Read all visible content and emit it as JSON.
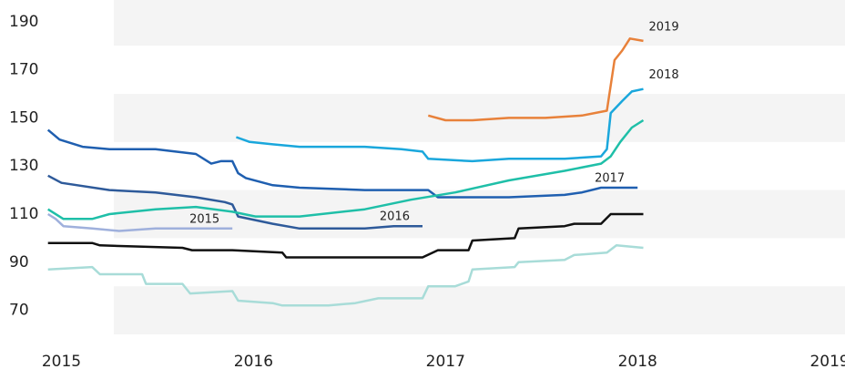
{
  "chart_data": {
    "type": "line",
    "xlim": [
      2014.68,
      2019.08
    ],
    "xticks": [
      2015,
      2016,
      2017,
      2018,
      2019
    ],
    "ylim": [
      60,
      200
    ],
    "yticks": [
      70,
      90,
      110,
      130,
      150,
      170,
      190
    ],
    "bands": true,
    "series": [
      {
        "name": "2017",
        "color": "#1f5fb0",
        "x": [
          2014.93,
          2014.99,
          2015.11,
          2015.25,
          2015.49,
          2015.7,
          2015.78,
          2015.83,
          2015.89,
          2015.92,
          2015.96,
          2016.1,
          2016.24,
          2016.58,
          2016.91,
          2016.96,
          2017.33,
          2017.62,
          2017.71,
          2017.81,
          2018.0
        ],
        "values": [
          145,
          141,
          138,
          137,
          137,
          135,
          131,
          132,
          132,
          127,
          125,
          122,
          121,
          120,
          120,
          117,
          117,
          118,
          119,
          121,
          121
        ]
      },
      {
        "name": "2016",
        "color": "#2e5a9a",
        "x": [
          2014.93,
          2015.0,
          2015.25,
          2015.49,
          2015.7,
          2015.85,
          2015.89,
          2015.92,
          2016.1,
          2016.24,
          2016.58,
          2016.73,
          2016.88
        ],
        "values": [
          126,
          123,
          120,
          119,
          117,
          115,
          114,
          109,
          106,
          104,
          104,
          105,
          105
        ]
      },
      {
        "name": "2015",
        "color": "#9fb0dc",
        "x": [
          2014.93,
          2014.97,
          2015.01,
          2015.16,
          2015.3,
          2015.49,
          2015.7,
          2015.89
        ],
        "values": [
          110,
          108,
          105,
          104,
          103,
          104,
          104,
          104
        ]
      },
      {
        "color": "#1fbfa8",
        "x": [
          2014.93,
          2015.01,
          2015.16,
          2015.25,
          2015.49,
          2015.7,
          2015.89,
          2016.01,
          2016.24,
          2016.58,
          2016.82,
          2017.05,
          2017.33,
          2017.62,
          2017.81,
          2017.86,
          2017.91,
          2017.97,
          2018.03
        ],
        "values": [
          112,
          108,
          108,
          110,
          112,
          113,
          111,
          109,
          109,
          112,
          116,
          119,
          124,
          128,
          131,
          134,
          140,
          146,
          149
        ]
      },
      {
        "name": "2018",
        "color": "#1aa7dc",
        "x": [
          2015.91,
          2015.98,
          2016.1,
          2016.24,
          2016.58,
          2016.77,
          2016.88,
          2016.91,
          2017.14,
          2017.33,
          2017.62,
          2017.81,
          2017.84,
          2017.86,
          2017.92,
          2017.97,
          2018.03
        ],
        "values": [
          142,
          140,
          139,
          138,
          138,
          137,
          136,
          133,
          132,
          133,
          133,
          134,
          137,
          152,
          157,
          161,
          162
        ]
      },
      {
        "name": "2019",
        "color": "#e8813a",
        "x": [
          2016.91,
          2017.0,
          2017.14,
          2017.33,
          2017.52,
          2017.71,
          2017.84,
          2017.88,
          2017.92,
          2017.96,
          2018.03
        ],
        "values": [
          151,
          149,
          149,
          150,
          150,
          151,
          153,
          174,
          178,
          183,
          182
        ]
      },
      {
        "color": "#111111",
        "x": [
          2014.93,
          2015.16,
          2015.2,
          2015.63,
          2015.68,
          2015.89,
          2016.15,
          2016.17,
          2016.39,
          2016.88,
          2016.96,
          2017.12,
          2017.14,
          2017.36,
          2017.38,
          2017.62,
          2017.67,
          2017.81,
          2017.86,
          2018.03
        ],
        "values": [
          98,
          98,
          97,
          96,
          95,
          95,
          94,
          92,
          92,
          92,
          95,
          95,
          99,
          100,
          104,
          105,
          106,
          106,
          110,
          110
        ]
      },
      {
        "color": "#a8dcd8",
        "x": [
          2014.93,
          2015.16,
          2015.2,
          2015.42,
          2015.44,
          2015.63,
          2015.67,
          2015.89,
          2015.92,
          2016.1,
          2016.15,
          2016.39,
          2016.53,
          2016.65,
          2016.88,
          2016.91,
          2017.05,
          2017.12,
          2017.14,
          2017.36,
          2017.38,
          2017.62,
          2017.67,
          2017.84,
          2017.89,
          2018.03
        ],
        "values": [
          87,
          88,
          85,
          85,
          81,
          81,
          77,
          78,
          74,
          73,
          72,
          72,
          73,
          75,
          75,
          80,
          80,
          82,
          87,
          88,
          90,
          91,
          93,
          94,
          97,
          96
        ]
      }
    ]
  }
}
